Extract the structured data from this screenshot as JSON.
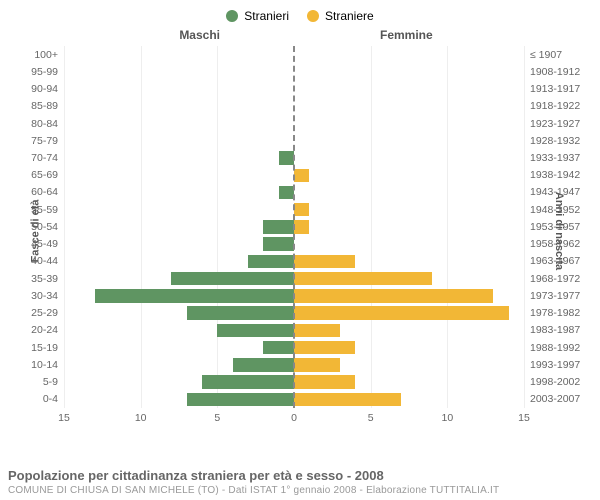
{
  "legend": {
    "male": {
      "label": "Stranieri",
      "color": "#5f9562"
    },
    "female": {
      "label": "Straniere",
      "color": "#f2b736"
    }
  },
  "column_headers": {
    "left": "Maschi",
    "right": "Femmine"
  },
  "y_titles": {
    "left": "Fasce di età",
    "right": "Anni di nascita"
  },
  "chart": {
    "type": "population-pyramid",
    "x_max": 15,
    "x_ticks_left": [
      15,
      10,
      5,
      0
    ],
    "x_ticks_right": [
      5,
      10,
      15
    ],
    "bar_height_pct": 78,
    "background_color": "#ffffff",
    "axis_text_color": "#666666",
    "grid_color": "#eeeeee",
    "center_line_color": "#888888",
    "age_label_fontsize": 10.5,
    "header_fontsize": 12,
    "rows": [
      {
        "age": "100+",
        "birth": "≤ 1907",
        "m": 0,
        "f": 0
      },
      {
        "age": "95-99",
        "birth": "1908-1912",
        "m": 0,
        "f": 0
      },
      {
        "age": "90-94",
        "birth": "1913-1917",
        "m": 0,
        "f": 0
      },
      {
        "age": "85-89",
        "birth": "1918-1922",
        "m": 0,
        "f": 0
      },
      {
        "age": "80-84",
        "birth": "1923-1927",
        "m": 0,
        "f": 0
      },
      {
        "age": "75-79",
        "birth": "1928-1932",
        "m": 0,
        "f": 0
      },
      {
        "age": "70-74",
        "birth": "1933-1937",
        "m": 1,
        "f": 0
      },
      {
        "age": "65-69",
        "birth": "1938-1942",
        "m": 0,
        "f": 1
      },
      {
        "age": "60-64",
        "birth": "1943-1947",
        "m": 1,
        "f": 0
      },
      {
        "age": "55-59",
        "birth": "1948-1952",
        "m": 0,
        "f": 1
      },
      {
        "age": "50-54",
        "birth": "1953-1957",
        "m": 2,
        "f": 1
      },
      {
        "age": "45-49",
        "birth": "1958-1962",
        "m": 2,
        "f": 0
      },
      {
        "age": "40-44",
        "birth": "1963-1967",
        "m": 3,
        "f": 4
      },
      {
        "age": "35-39",
        "birth": "1968-1972",
        "m": 8,
        "f": 9
      },
      {
        "age": "30-34",
        "birth": "1973-1977",
        "m": 13,
        "f": 13
      },
      {
        "age": "25-29",
        "birth": "1978-1982",
        "m": 7,
        "f": 14
      },
      {
        "age": "20-24",
        "birth": "1983-1987",
        "m": 5,
        "f": 3
      },
      {
        "age": "15-19",
        "birth": "1988-1992",
        "m": 2,
        "f": 4
      },
      {
        "age": "10-14",
        "birth": "1993-1997",
        "m": 4,
        "f": 3
      },
      {
        "age": "5-9",
        "birth": "1998-2002",
        "m": 6,
        "f": 4
      },
      {
        "age": "0-4",
        "birth": "2003-2007",
        "m": 7,
        "f": 7
      }
    ]
  },
  "footer": {
    "title": "Popolazione per cittadinanza straniera per età e sesso - 2008",
    "subtitle": "COMUNE DI CHIUSA DI SAN MICHELE (TO) - Dati ISTAT 1° gennaio 2008 - Elaborazione TUTTITALIA.IT"
  }
}
